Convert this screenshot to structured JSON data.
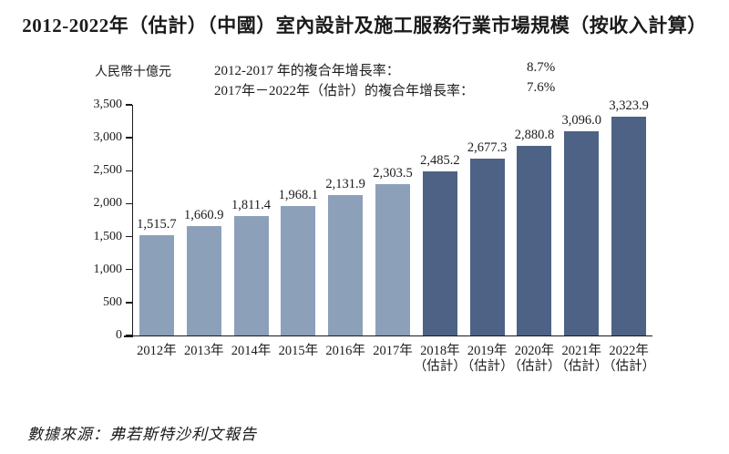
{
  "title": "2012-2022年（估計）（中國）室內設計及施工服務行業市場規模（按收入計算）",
  "unit_label": "人民幣十億元",
  "cagr": [
    {
      "label": "2012-2017 年的複合年增長率：",
      "value": "8.7%"
    },
    {
      "label": "2017年－2022年（估計）的複合年增長率：",
      "value": "7.6%"
    }
  ],
  "source": "數據來源：弗若斯特沙利文報告",
  "colors": {
    "historical_bar": "#8da0b9",
    "estimated_bar": "#4d6285",
    "axis": "#1a1a1a",
    "text": "#1b1b1b"
  },
  "chart_data": {
    "type": "bar",
    "title": "2012-2022年（估計）（中國）室內設計及施工服務行業市場規模（按收入計算）",
    "xlabel": "",
    "ylabel": "人民幣十億元",
    "ylim": [
      0,
      3500
    ],
    "grid": false,
    "legend": "none",
    "yticks": [
      {
        "value": 0,
        "label": "0"
      },
      {
        "value": 500,
        "label": "500"
      },
      {
        "value": 1000,
        "label": "1,000"
      },
      {
        "value": 1500,
        "label": "1,500"
      },
      {
        "value": 2000,
        "label": "2,000"
      },
      {
        "value": 2500,
        "label": "2,500"
      },
      {
        "value": 3000,
        "label": "3,000"
      },
      {
        "value": 3500,
        "label": "3,500"
      }
    ],
    "bars": [
      {
        "year": "2012年",
        "note": "",
        "value": 1515.7,
        "label": "1,515.7",
        "group": "historical"
      },
      {
        "year": "2013年",
        "note": "",
        "value": 1660.9,
        "label": "1,660.9",
        "group": "historical"
      },
      {
        "year": "2014年",
        "note": "",
        "value": 1811.4,
        "label": "1,811.4",
        "group": "historical"
      },
      {
        "year": "2015年",
        "note": "",
        "value": 1968.1,
        "label": "1,968.1",
        "group": "historical"
      },
      {
        "year": "2016年",
        "note": "",
        "value": 2131.9,
        "label": "2,131.9",
        "group": "historical"
      },
      {
        "year": "2017年",
        "note": "",
        "value": 2303.5,
        "label": "2,303.5",
        "group": "historical"
      },
      {
        "year": "2018年",
        "note": "（估計）",
        "value": 2485.2,
        "label": "2,485.2",
        "group": "estimated"
      },
      {
        "year": "2019年",
        "note": "（估計）",
        "value": 2677.3,
        "label": "2,677.3",
        "group": "estimated"
      },
      {
        "year": "2020年",
        "note": "（估計）",
        "value": 2880.8,
        "label": "2,880.8",
        "group": "estimated"
      },
      {
        "year": "2021年",
        "note": "（估計）",
        "value": 3096.0,
        "label": "3,096.0",
        "group": "estimated"
      },
      {
        "year": "2022年",
        "note": "（估計）",
        "value": 3323.9,
        "label": "3,323.9",
        "group": "estimated"
      }
    ]
  }
}
